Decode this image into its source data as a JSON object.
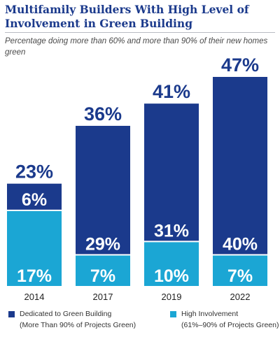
{
  "title": "Multifamily Builders With High Level of Involvement in Green Building",
  "subtitle": "Percentage doing more than 60% and more than 90%  of their new homes green",
  "colors": {
    "dark": "#1b3a8c",
    "light": "#1ba6d4",
    "label_on_bar": "#ffffff",
    "total_label": "#1b3a8c"
  },
  "legend": {
    "dedicated_line1": "Dedicated to Green Building",
    "dedicated_line2": "(More Than 90% of Projects Green)",
    "high_line1": "High Involvement",
    "high_line2": "(61%–90% of Projects Green)"
  },
  "chart_data": {
    "type": "bar",
    "stacked": true,
    "categories": [
      "2014",
      "2017",
      "2019",
      "2022"
    ],
    "series": [
      {
        "name": "High Involvement (61%–90% of Projects Green)",
        "values": [
          17,
          7,
          10,
          7
        ]
      },
      {
        "name": "Dedicated to Green Building (More Than 90% of Projects Green)",
        "values": [
          6,
          29,
          31,
          40
        ]
      }
    ],
    "totals": [
      23,
      36,
      41,
      47
    ],
    "labels": {
      "high": [
        "17%",
        "7%",
        "10%",
        "7%"
      ],
      "dedicated": [
        "6%",
        "29%",
        "31%",
        "40%"
      ],
      "totals": [
        "23%",
        "36%",
        "41%",
        "47%"
      ]
    },
    "ylim": [
      0,
      47
    ],
    "legend_position": "bottom"
  }
}
